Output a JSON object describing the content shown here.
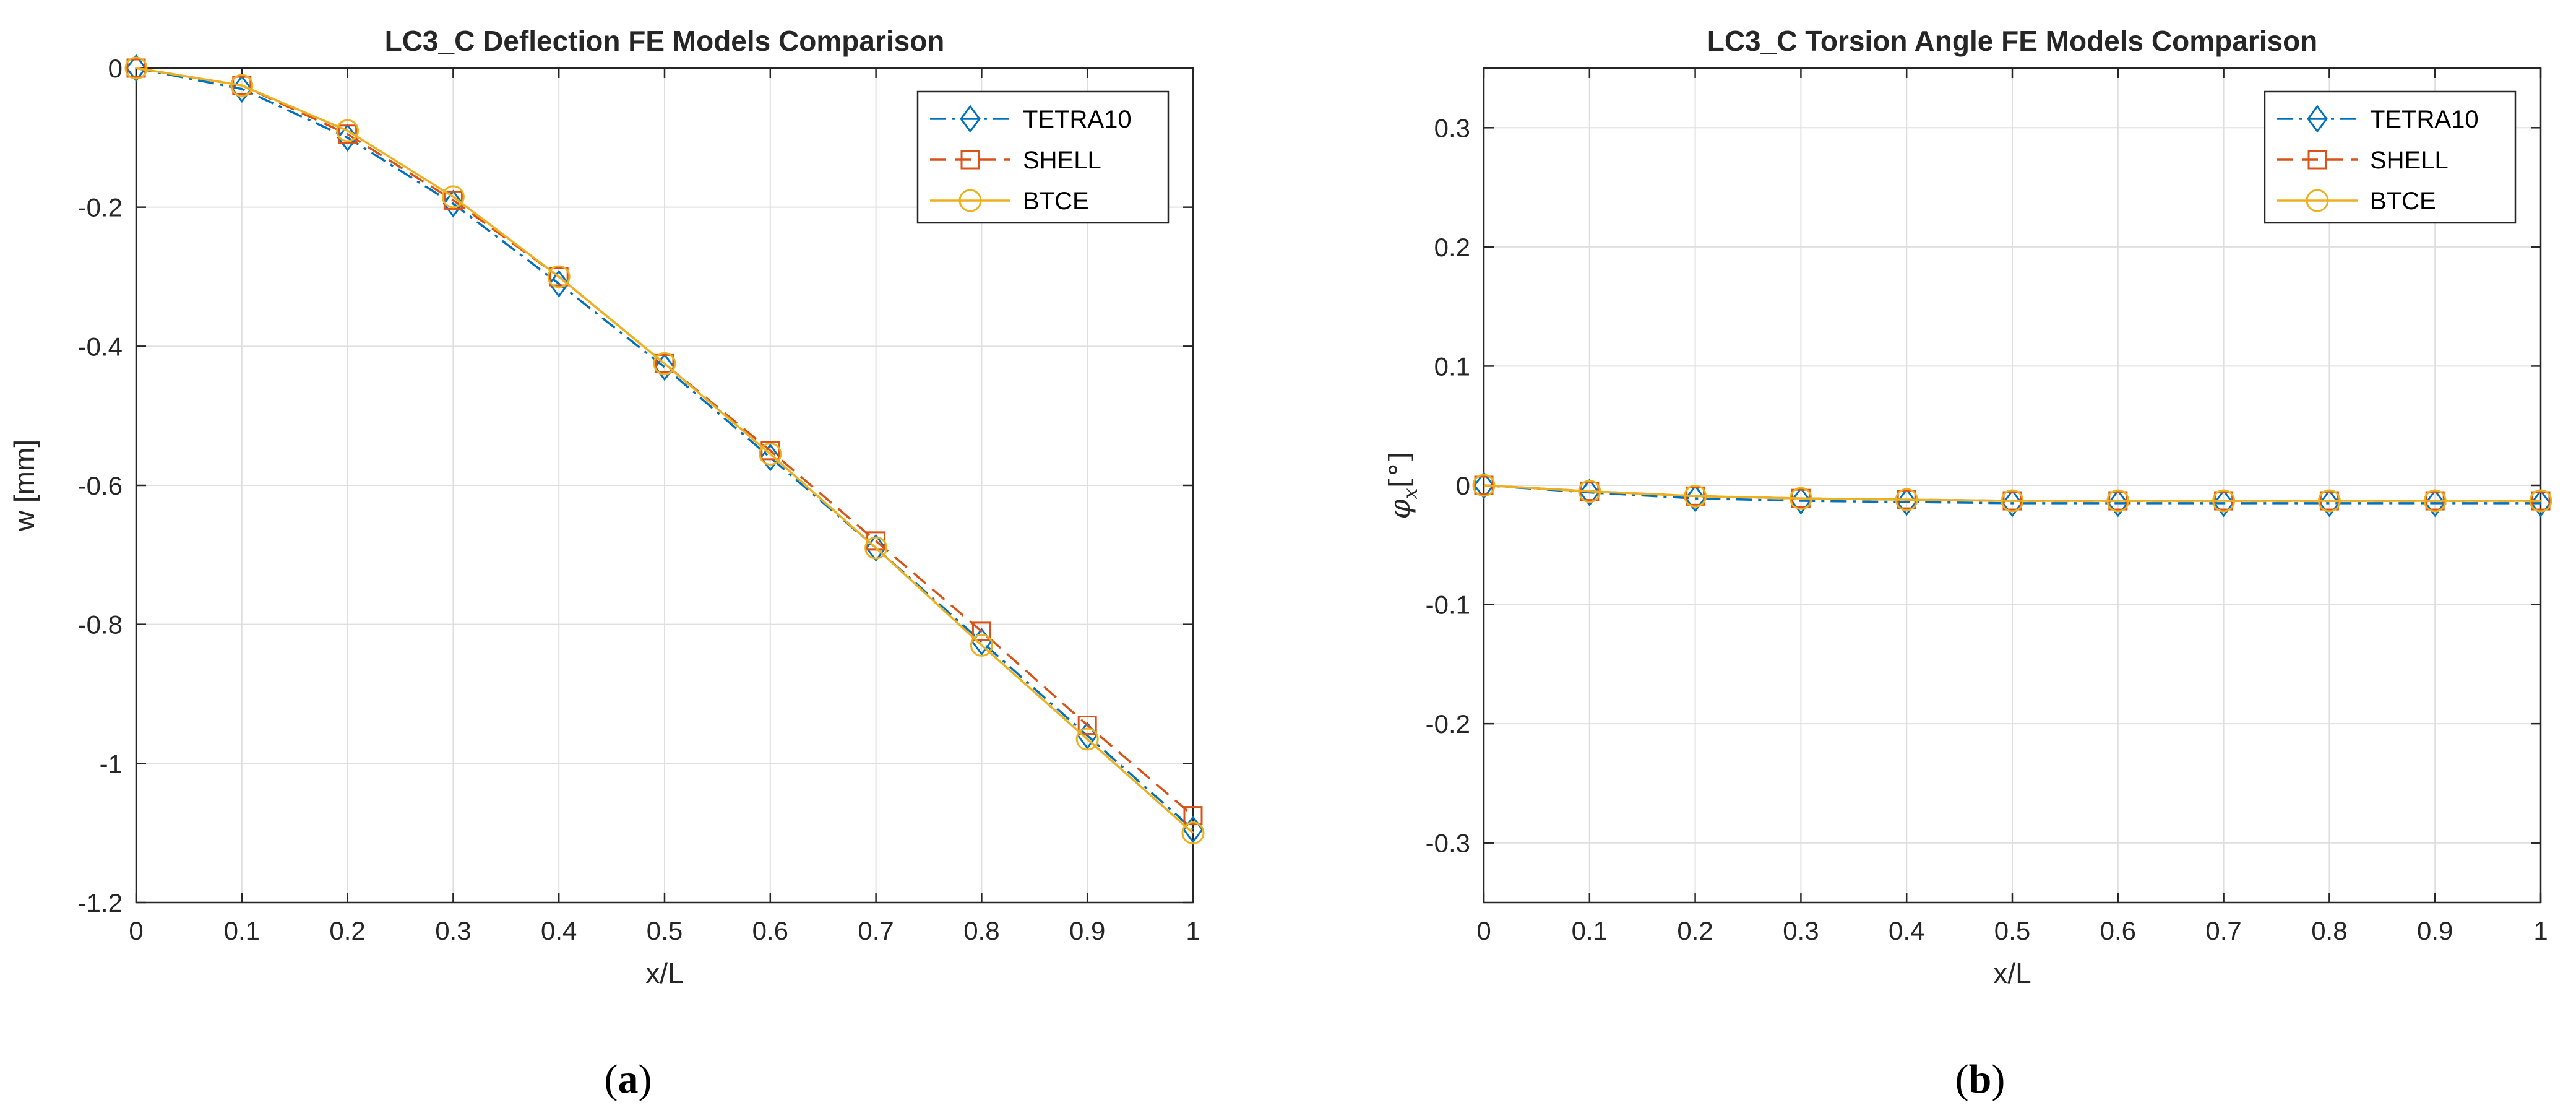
{
  "figure": {
    "colors": {
      "tetra10": "#0072BD",
      "shell": "#D95319",
      "btce": "#EDB120",
      "axis": "#262626",
      "grid": "#dfdfdf"
    }
  },
  "chart_data": [
    {
      "type": "line",
      "title": "LC3_C Deflection FE Models Comparison",
      "xlabel": "x/L",
      "ylabel": "w [mm]",
      "xlim": [
        0,
        1
      ],
      "ylim": [
        -1.2,
        0
      ],
      "grid": true,
      "legend_position": "top-right",
      "caption_prefix": "(",
      "caption_letter": "a",
      "caption_suffix": ")",
      "x_ticks": [
        0,
        0.1,
        0.2,
        0.3,
        0.4,
        0.5,
        0.6,
        0.7,
        0.8,
        0.9,
        1
      ],
      "x_tick_labels": [
        "0",
        "0.1",
        "0.2",
        "0.3",
        "0.4",
        "0.5",
        "0.6",
        "0.7",
        "0.8",
        "0.9",
        "1"
      ],
      "y_ticks": [
        0,
        -0.2,
        -0.4,
        -0.6,
        -0.8,
        -1,
        -1.2
      ],
      "y_tick_labels": [
        "0",
        "-0.2",
        "-0.4",
        "-0.6",
        "-0.8",
        "-1",
        "-1.2"
      ],
      "x": [
        0,
        0.1,
        0.2,
        0.3,
        0.4,
        0.5,
        0.6,
        0.7,
        0.8,
        0.9,
        1
      ],
      "series": [
        {
          "name": "TETRA10",
          "color_key": "tetra10",
          "marker": "diamond",
          "dash": "dashdot",
          "values": [
            0,
            -0.03,
            -0.1,
            -0.195,
            -0.31,
            -0.43,
            -0.56,
            -0.69,
            -0.825,
            -0.96,
            -1.095
          ]
        },
        {
          "name": "SHELL",
          "color_key": "shell",
          "marker": "square",
          "dash": "dashed",
          "values": [
            0,
            -0.025,
            -0.095,
            -0.19,
            -0.3,
            -0.425,
            -0.55,
            -0.68,
            -0.81,
            -0.945,
            -1.075
          ]
        },
        {
          "name": "BTCE",
          "color_key": "btce",
          "marker": "circle",
          "dash": "solid",
          "values": [
            0,
            -0.025,
            -0.09,
            -0.185,
            -0.3,
            -0.425,
            -0.555,
            -0.69,
            -0.83,
            -0.965,
            -1.1
          ]
        }
      ]
    },
    {
      "type": "line",
      "title": "LC3_C Torsion Angle FE Models Comparison",
      "xlabel": "x/L",
      "ylabel_main": "φ",
      "ylabel_sub": "x",
      "ylabel_unit": "[°]",
      "xlim": [
        0,
        1
      ],
      "ylim": [
        -0.35,
        0.35
      ],
      "grid": true,
      "legend_position": "top-right",
      "caption_prefix": "(",
      "caption_letter": "b",
      "caption_suffix": ")",
      "x_ticks": [
        0,
        0.1,
        0.2,
        0.3,
        0.4,
        0.5,
        0.6,
        0.7,
        0.8,
        0.9,
        1
      ],
      "x_tick_labels": [
        "0",
        "0.1",
        "0.2",
        "0.3",
        "0.4",
        "0.5",
        "0.6",
        "0.7",
        "0.8",
        "0.9",
        "1"
      ],
      "y_ticks": [
        0.3,
        0.2,
        0.1,
        0,
        -0.1,
        -0.2,
        -0.3
      ],
      "y_tick_labels": [
        "0.3",
        "0.2",
        "0.1",
        "0",
        "-0.1",
        "-0.2",
        "-0.3"
      ],
      "x": [
        0,
        0.1,
        0.2,
        0.3,
        0.4,
        0.5,
        0.6,
        0.7,
        0.8,
        0.9,
        1
      ],
      "series": [
        {
          "name": "TETRA10",
          "color_key": "tetra10",
          "marker": "diamond",
          "dash": "dashdot",
          "values": [
            0,
            -0.006,
            -0.011,
            -0.013,
            -0.014,
            -0.015,
            -0.015,
            -0.015,
            -0.015,
            -0.015,
            -0.015
          ]
        },
        {
          "name": "SHELL",
          "color_key": "shell",
          "marker": "square",
          "dash": "dashed",
          "values": [
            0,
            -0.005,
            -0.009,
            -0.011,
            -0.012,
            -0.013,
            -0.013,
            -0.013,
            -0.013,
            -0.013,
            -0.013
          ]
        },
        {
          "name": "BTCE",
          "color_key": "btce",
          "marker": "circle",
          "dash": "solid",
          "values": [
            0,
            -0.005,
            -0.009,
            -0.011,
            -0.012,
            -0.013,
            -0.013,
            -0.013,
            -0.013,
            -0.013,
            -0.013
          ]
        }
      ]
    }
  ]
}
